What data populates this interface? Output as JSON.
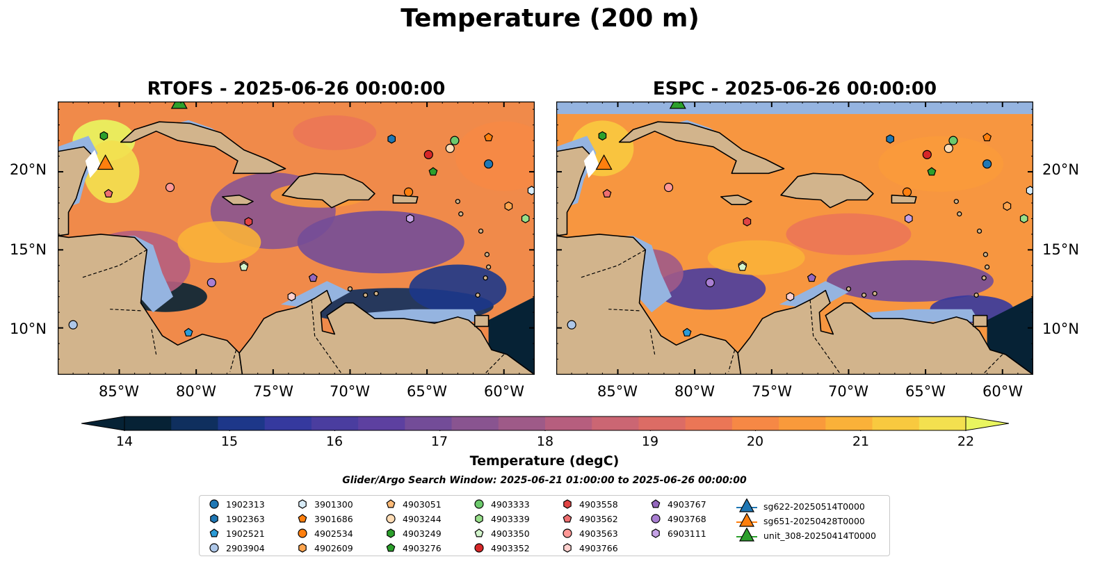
{
  "figure": {
    "title": "Temperature (200 m)",
    "panels": [
      {
        "id": "rtofs",
        "title": "RTOFS - 2025-06-26 00:00:00"
      },
      {
        "id": "espc",
        "title": "ESPC - 2025-06-26 00:00:00"
      }
    ],
    "lon_ticks": [
      "85°W",
      "80°W",
      "75°W",
      "70°W",
      "65°W",
      "60°W"
    ],
    "lat_ticks": [
      "20°N",
      "15°N",
      "10°N"
    ],
    "map_extent": {
      "lon": [
        -89,
        -58
      ],
      "lat": [
        7,
        24.5
      ]
    },
    "colors": {
      "land": "#d2b48c",
      "shallow_water": "#95b4e0",
      "cold": "#062235",
      "warm": "#e9f55f"
    }
  },
  "colorbar": {
    "label": "Temperature (degC)",
    "ticks": [
      "14",
      "15",
      "16",
      "17",
      "18",
      "19",
      "20",
      "21",
      "22"
    ],
    "range": [
      14,
      22
    ],
    "step": 0.5,
    "colors": [
      "#062235",
      "#0f2f5e",
      "#1d3789",
      "#35399e",
      "#4a3d9f",
      "#5d40a0",
      "#734c98",
      "#895490",
      "#9e5a88",
      "#b65e7e",
      "#cb6673",
      "#dc6c65",
      "#eb7656",
      "#f68845",
      "#f99a3b",
      "#fab139",
      "#f8c93f",
      "#f3e04f"
    ]
  },
  "search_window": "Glider/Argo Search Window: 2025-06-21 01:00:00 to 2025-06-26 00:00:00",
  "legend": {
    "columns": [
      [
        {
          "label": "1902313",
          "marker": "circle",
          "color": "#1f77b4"
        },
        {
          "label": "1902363",
          "marker": "hexagon",
          "color": "#1f77b4"
        },
        {
          "label": "1902521",
          "marker": "pentagon",
          "color": "#2b9bd6"
        },
        {
          "label": "2903904",
          "marker": "circle",
          "color": "#aec7e8"
        }
      ],
      [
        {
          "label": "3901300",
          "marker": "hexagon",
          "color": "#d8ecf8"
        },
        {
          "label": "3901686",
          "marker": "pentagon",
          "color": "#ff7f0e"
        },
        {
          "label": "4902534",
          "marker": "circle",
          "color": "#ff7f0e"
        },
        {
          "label": "4902609",
          "marker": "hexagon",
          "color": "#ffa54f"
        }
      ],
      [
        {
          "label": "4903051",
          "marker": "pentagon",
          "color": "#ffbb78"
        },
        {
          "label": "4903244",
          "marker": "circle",
          "color": "#ffdcb5"
        },
        {
          "label": "4903249",
          "marker": "hexagon",
          "color": "#2ca02c"
        },
        {
          "label": "4903276",
          "marker": "pentagon",
          "color": "#2ca02c"
        }
      ],
      [
        {
          "label": "4903333",
          "marker": "circle",
          "color": "#6cc96c"
        },
        {
          "label": "4903339",
          "marker": "hexagon",
          "color": "#98df8a"
        },
        {
          "label": "4903350",
          "marker": "pentagon",
          "color": "#d3f5cc"
        },
        {
          "label": "4903352",
          "marker": "circle",
          "color": "#d62728"
        }
      ],
      [
        {
          "label": "4903558",
          "marker": "hexagon",
          "color": "#e04444"
        },
        {
          "label": "4903562",
          "marker": "pentagon",
          "color": "#ef6f70"
        },
        {
          "label": "4903563",
          "marker": "circle",
          "color": "#ff9896"
        },
        {
          "label": "4903766",
          "marker": "hexagon",
          "color": "#ffd0ce"
        }
      ],
      [
        {
          "label": "4903767",
          "marker": "pentagon",
          "color": "#9467bd"
        },
        {
          "label": "4903768",
          "marker": "circle",
          "color": "#a97fd2"
        },
        {
          "label": "6903111",
          "marker": "hexagon",
          "color": "#c5a2e6"
        }
      ],
      [
        {
          "label": "sg622-20250514T0000",
          "marker": "triangle",
          "color": "#1f77b4"
        },
        {
          "label": "sg651-20250428T0000",
          "marker": "triangle",
          "color": "#ff7f0e"
        },
        {
          "label": "unit_308-20250414T0000",
          "marker": "triangle",
          "color": "#2ca02c"
        }
      ]
    ]
  },
  "floats": [
    {
      "id": "1902313",
      "lon": -61.0,
      "lat": 20.5
    },
    {
      "id": "1902363",
      "lon": -67.3,
      "lat": 22.1
    },
    {
      "id": "1902521",
      "lon": -80.5,
      "lat": 9.7
    },
    {
      "id": "2903904",
      "lon": -88.0,
      "lat": 10.2
    },
    {
      "id": "3901300",
      "lon": -58.2,
      "lat": 18.8
    },
    {
      "id": "3901686",
      "lon": -61.0,
      "lat": 22.2
    },
    {
      "id": "4902534",
      "lon": -66.2,
      "lat": 18.7
    },
    {
      "id": "4902609",
      "lon": -59.7,
      "lat": 17.8
    },
    {
      "id": "4903051",
      "lon": -76.9,
      "lat": 14.0
    },
    {
      "id": "4903244",
      "lon": -63.5,
      "lat": 21.5
    },
    {
      "id": "4903249",
      "lon": -86.0,
      "lat": 22.3
    },
    {
      "id": "4903276",
      "lon": -64.6,
      "lat": 20.0
    },
    {
      "id": "4903333",
      "lon": -63.2,
      "lat": 22.0
    },
    {
      "id": "4903339",
      "lon": -58.6,
      "lat": 17.0
    },
    {
      "id": "4903350",
      "lon": -76.9,
      "lat": 13.9
    },
    {
      "id": "4903352",
      "lon": -64.9,
      "lat": 21.1
    },
    {
      "id": "4903558",
      "lon": -76.6,
      "lat": 16.8
    },
    {
      "id": "4903562",
      "lon": -85.7,
      "lat": 18.6
    },
    {
      "id": "4903563",
      "lon": -81.7,
      "lat": 19.0
    },
    {
      "id": "4903766",
      "lon": -73.8,
      "lat": 12.0
    },
    {
      "id": "4903767",
      "lon": -72.4,
      "lat": 13.2
    },
    {
      "id": "4903768",
      "lon": -79.0,
      "lat": 12.9
    },
    {
      "id": "6903111",
      "lon": -66.1,
      "lat": 17.0
    }
  ],
  "gliders": [
    {
      "id": "sg651-20250428T0000",
      "lon": -85.9,
      "lat": 20.5
    },
    {
      "id": "unit_308-20250414T0000",
      "lon": -81.1,
      "lat": 24.4
    }
  ]
}
